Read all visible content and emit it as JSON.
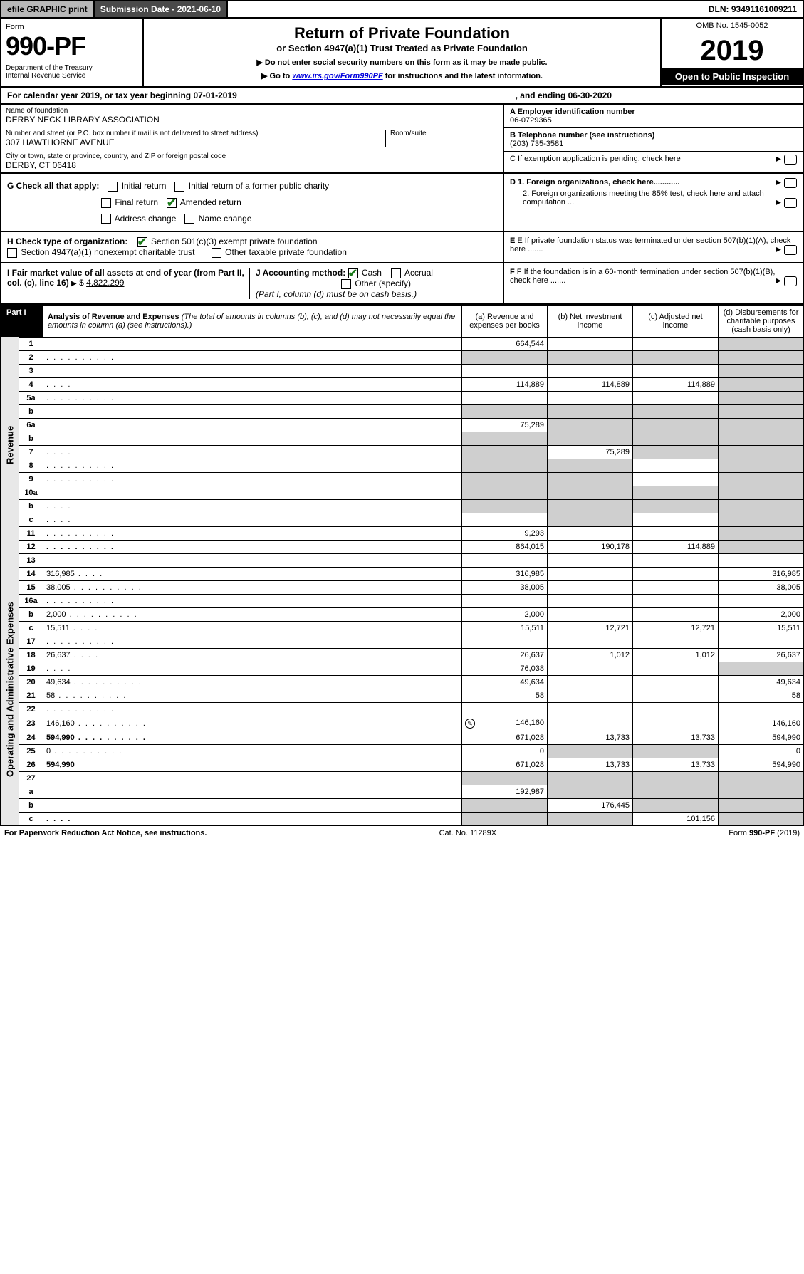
{
  "topbar": {
    "efile": "efile GRAPHIC print",
    "subdate_label": "Submission Date - 2021-06-10",
    "dln": "DLN: 93491161009211"
  },
  "header": {
    "form_word": "Form",
    "form_num": "990-PF",
    "dept": "Department of the Treasury\nInternal Revenue Service",
    "title": "Return of Private Foundation",
    "subtitle": "or Section 4947(a)(1) Trust Treated as Private Foundation",
    "note1": "▶ Do not enter social security numbers on this form as it may be made public.",
    "note2_pre": "▶ Go to ",
    "note2_link": "www.irs.gov/Form990PF",
    "note2_post": " for instructions and the latest information.",
    "omb": "OMB No. 1545-0052",
    "year": "2019",
    "open": "Open to Public Inspection"
  },
  "calrow": {
    "p1": "For calendar year 2019, or tax year beginning 07-01-2019",
    "p2": ", and ending 06-30-2020"
  },
  "id": {
    "name_lbl": "Name of foundation",
    "name": "DERBY NECK LIBRARY ASSOCIATION",
    "addr_lbl": "Number and street (or P.O. box number if mail is not delivered to street address)",
    "addr": "307 HAWTHORNE AVENUE",
    "room_lbl": "Room/suite",
    "city_lbl": "City or town, state or province, country, and ZIP or foreign postal code",
    "city": "DERBY, CT  06418",
    "a_lbl": "A Employer identification number",
    "a_val": "06-0729365",
    "b_lbl": "B Telephone number (see instructions)",
    "b_val": "(203) 735-3581",
    "c_lbl": "C  If exemption application is pending, check here",
    "d1": "D 1. Foreign organizations, check here............",
    "d2": "2. Foreign organizations meeting the 85% test, check here and attach computation ...",
    "e": "E  If private foundation status was terminated under section 507(b)(1)(A), check here .......",
    "f": "F  If the foundation is in a 60-month termination under section 507(b)(1)(B), check here .......",
    "g_lbl": "G Check all that apply:",
    "g_opts": [
      "Initial return",
      "Initial return of a former public charity",
      "Final return",
      "Amended return",
      "Address change",
      "Name change"
    ],
    "h_lbl": "H Check type of organization:",
    "h_opts": [
      "Section 501(c)(3) exempt private foundation",
      "Section 4947(a)(1) nonexempt charitable trust",
      "Other taxable private foundation"
    ],
    "i_lbl": "I Fair market value of all assets at end of year (from Part II, col. (c), line 16)",
    "i_val": "4,822,299",
    "j_lbl": "J Accounting method:",
    "j_cash": "Cash",
    "j_accr": "Accrual",
    "j_other": "Other (specify)",
    "j_note": "(Part I, column (d) must be on cash basis.)"
  },
  "part1": {
    "label": "Part I",
    "title_b": "Analysis of Revenue and Expenses",
    "title_i": " (The total of amounts in columns (b), (c), and (d) may not necessarily equal the amounts in column (a) (see instructions).)",
    "cols": {
      "a": "(a)   Revenue and expenses per books",
      "b": "(b)  Net investment income",
      "c": "(c)  Adjusted net income",
      "d": "(d)  Disbursements for charitable purposes (cash basis only)"
    },
    "sections": {
      "rev": "Revenue",
      "exp": "Operating and Administrative Expenses"
    },
    "rows": [
      {
        "n": "1",
        "d": "",
        "a": "664,544",
        "b": "",
        "c": "",
        "d_shade": true
      },
      {
        "n": "2",
        "d": "",
        "dots": true,
        "a": "",
        "b": "",
        "c": "",
        "all_shade": true
      },
      {
        "n": "3",
        "d": "",
        "a": "",
        "b": "",
        "c": "",
        "d_shade": true
      },
      {
        "n": "4",
        "d": "",
        "dots": "s",
        "a": "114,889",
        "b": "114,889",
        "c": "114,889",
        "d_shade": true
      },
      {
        "n": "5a",
        "d": "",
        "dots": true,
        "a": "",
        "b": "",
        "c": "",
        "d_shade": true
      },
      {
        "n": "b",
        "d": "",
        "a": "",
        "b": "",
        "c": "",
        "all_shade": true
      },
      {
        "n": "6a",
        "d": "",
        "a": "75,289",
        "b": "",
        "c": "",
        "bcd_shade": true
      },
      {
        "n": "b",
        "d": "",
        "a": "",
        "b": "",
        "c": "",
        "all_shade": true
      },
      {
        "n": "7",
        "d": "",
        "dots": "s",
        "a": "",
        "b": "75,289",
        "c": "",
        "acd_shade": true
      },
      {
        "n": "8",
        "d": "",
        "dots": true,
        "a": "",
        "b": "",
        "c": "",
        "abd_shade": true
      },
      {
        "n": "9",
        "d": "",
        "dots": true,
        "a": "",
        "b": "",
        "c": "",
        "abd_shade": true
      },
      {
        "n": "10a",
        "d": "",
        "a": "",
        "b": "",
        "c": "",
        "all_shade": true
      },
      {
        "n": "b",
        "d": "",
        "dots": "s",
        "a": "",
        "b": "",
        "c": "",
        "all_shade": true
      },
      {
        "n": "c",
        "d": "",
        "dots": "s",
        "a": "",
        "b": "",
        "c": "",
        "bd_shade": true
      },
      {
        "n": "11",
        "d": "",
        "dots": true,
        "a": "9,293",
        "b": "",
        "c": "",
        "d_shade": true
      },
      {
        "n": "12",
        "d": "",
        "dots": true,
        "bold": true,
        "a": "864,015",
        "b": "190,178",
        "c": "114,889",
        "d_shade": true
      },
      {
        "n": "13",
        "d": "",
        "a": "",
        "b": "",
        "c": ""
      },
      {
        "n": "14",
        "d": "316,985",
        "dots": "s",
        "a": "316,985",
        "b": "",
        "c": ""
      },
      {
        "n": "15",
        "d": "38,005",
        "dots": true,
        "a": "38,005",
        "b": "",
        "c": ""
      },
      {
        "n": "16a",
        "d": "",
        "dots": true,
        "a": "",
        "b": "",
        "c": ""
      },
      {
        "n": "b",
        "d": "2,000",
        "dots": true,
        "a": "2,000",
        "b": "",
        "c": ""
      },
      {
        "n": "c",
        "d": "15,511",
        "dots": "s",
        "a": "15,511",
        "b": "12,721",
        "c": "12,721"
      },
      {
        "n": "17",
        "d": "",
        "dots": true,
        "a": "",
        "b": "",
        "c": ""
      },
      {
        "n": "18",
        "d": "26,637",
        "dots": "s",
        "a": "26,637",
        "b": "1,012",
        "c": "1,012"
      },
      {
        "n": "19",
        "d": "",
        "dots": "s",
        "a": "76,038",
        "b": "",
        "c": "",
        "d_shade": true
      },
      {
        "n": "20",
        "d": "49,634",
        "dots": true,
        "a": "49,634",
        "b": "",
        "c": ""
      },
      {
        "n": "21",
        "d": "58",
        "dots": true,
        "a": "58",
        "b": "",
        "c": ""
      },
      {
        "n": "22",
        "d": "",
        "dots": true,
        "a": "",
        "b": "",
        "c": ""
      },
      {
        "n": "23",
        "d": "146,160",
        "dots": true,
        "a": "146,160",
        "b": "",
        "c": "",
        "icon": true
      },
      {
        "n": "24",
        "d": "594,990",
        "dots": true,
        "bold": true,
        "a": "671,028",
        "b": "13,733",
        "c": "13,733"
      },
      {
        "n": "25",
        "d": "0",
        "dots": true,
        "a": "0",
        "b": "",
        "c": "",
        "bc_shade": true
      },
      {
        "n": "26",
        "d": "594,990",
        "bold": true,
        "a": "671,028",
        "b": "13,733",
        "c": "13,733"
      },
      {
        "n": "27",
        "d": "",
        "a": "",
        "b": "",
        "c": "",
        "all_shade": true
      },
      {
        "n": "a",
        "d": "",
        "bold": true,
        "a": "192,987",
        "b": "",
        "c": "",
        "bcd_shade": true
      },
      {
        "n": "b",
        "d": "",
        "bold": true,
        "a": "",
        "b": "176,445",
        "c": "",
        "acd_shade": true
      },
      {
        "n": "c",
        "d": "",
        "dots": "s",
        "bold": true,
        "a": "",
        "b": "",
        "c": "101,156",
        "abd_shade": true
      }
    ]
  },
  "footer": {
    "left": "For Paperwork Reduction Act Notice, see instructions.",
    "mid": "Cat. No. 11289X",
    "right": "Form 990-PF (2019)"
  },
  "colors": {
    "shade": "#cfcfcf",
    "check": "#1a7a1a"
  }
}
